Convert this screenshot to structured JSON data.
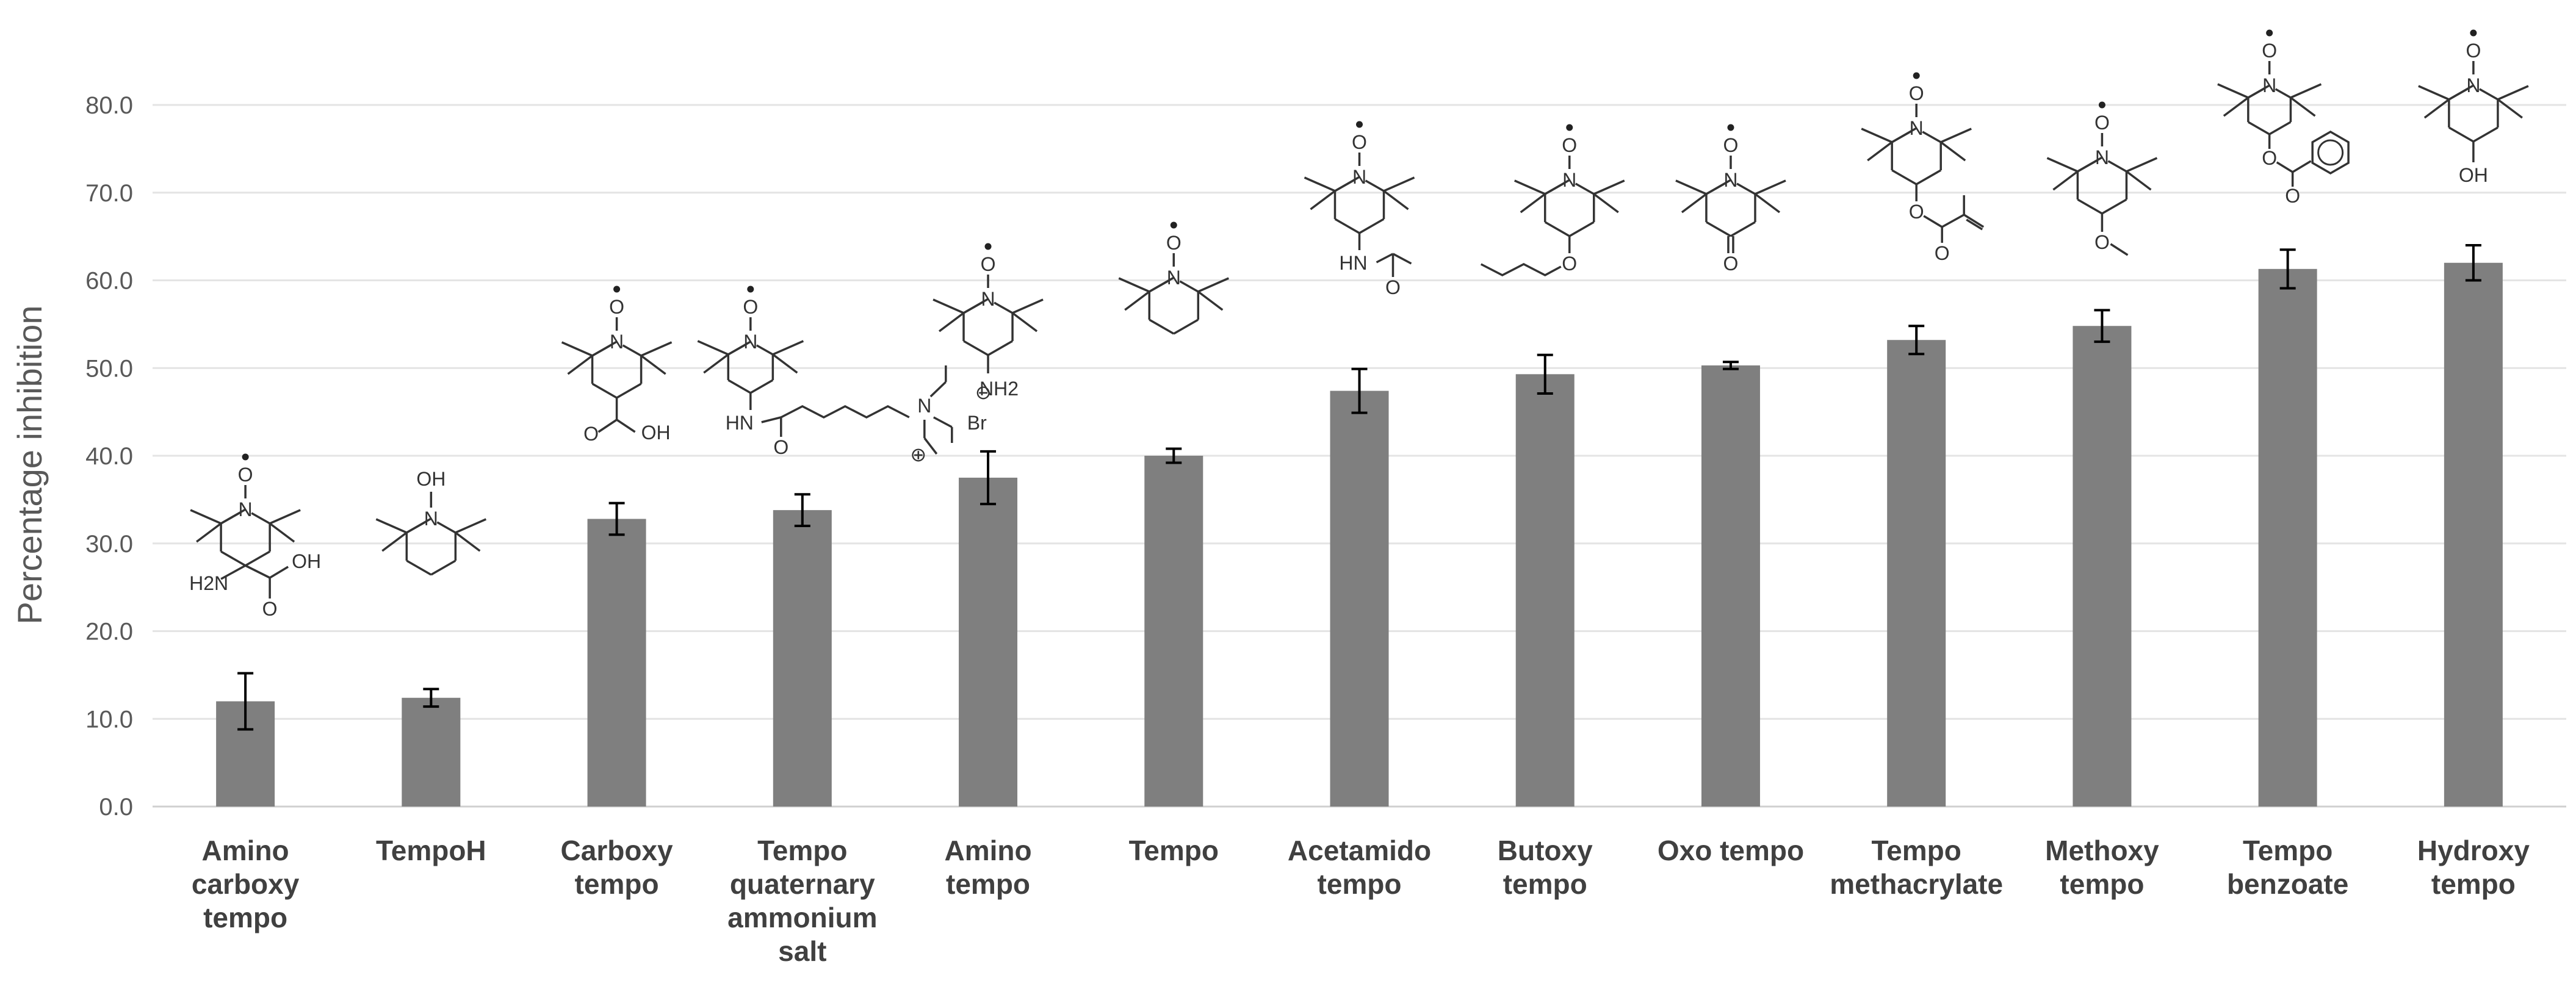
{
  "chart_data": {
    "type": "bar",
    "title": "",
    "xlabel": "",
    "ylabel": "Percentage inhibition",
    "ylim": [
      0,
      80
    ],
    "yticks": [
      "0.0",
      "10.0",
      "20.0",
      "30.0",
      "40.0",
      "50.0",
      "60.0",
      "70.0",
      "80.0"
    ],
    "grid": true,
    "bar_color": "#7f7f7f",
    "categories": [
      [
        "Amino",
        "carboxy",
        "tempo"
      ],
      [
        "TempoH"
      ],
      [
        "Carboxy",
        "tempo"
      ],
      [
        "Tempo",
        "quaternary",
        "ammonium",
        "salt"
      ],
      [
        "Amino",
        "tempo"
      ],
      [
        "Tempo"
      ],
      [
        "Acetamido",
        "tempo"
      ],
      [
        "Butoxy",
        "tempo"
      ],
      [
        "Oxo tempo"
      ],
      [
        "Tempo",
        "methacrylate"
      ],
      [
        "Methoxy",
        "tempo"
      ],
      [
        "Tempo",
        "benzoate"
      ],
      [
        "Hydroxy",
        "tempo"
      ]
    ],
    "values": [
      12.0,
      12.4,
      32.8,
      33.8,
      37.5,
      40.0,
      47.4,
      49.3,
      50.3,
      53.2,
      54.8,
      61.3,
      62.0
    ],
    "errors": [
      3.2,
      1.0,
      1.8,
      1.8,
      3.0,
      0.8,
      2.5,
      2.2,
      0.4,
      1.6,
      1.8,
      2.2,
      2.0
    ],
    "structures": {
      "amino_carboxy_tempo": {
        "substituents": [
          "H2N",
          "OH",
          "O"
        ]
      },
      "tempoh": {
        "substituents": [
          "OH"
        ]
      },
      "carboxy_tempo": {
        "substituents": [
          "OH",
          "O"
        ]
      },
      "tempo_quaternary_ammonium_salt": {
        "substituents": [
          "HN",
          "O",
          "N",
          "⊕",
          "Br",
          "⊖"
        ]
      },
      "amino_tempo": {
        "substituents": [
          "NH2"
        ]
      },
      "tempo": {
        "substituents": []
      },
      "acetamido_tempo": {
        "substituents": [
          "HN",
          "O"
        ]
      },
      "butoxy_tempo": {
        "substituents": [
          "O"
        ]
      },
      "oxo_tempo": {
        "substituents": [
          "O"
        ]
      },
      "tempo_methacrylate": {
        "substituents": [
          "O",
          "O"
        ]
      },
      "methoxy_tempo": {
        "substituents": [
          "O"
        ]
      },
      "tempo_benzoate": {
        "substituents": [
          "O",
          "O"
        ]
      },
      "hydroxy_tempo": {
        "substituents": [
          "OH"
        ]
      },
      "nitroxide_labels": [
        "N",
        "O"
      ]
    }
  }
}
